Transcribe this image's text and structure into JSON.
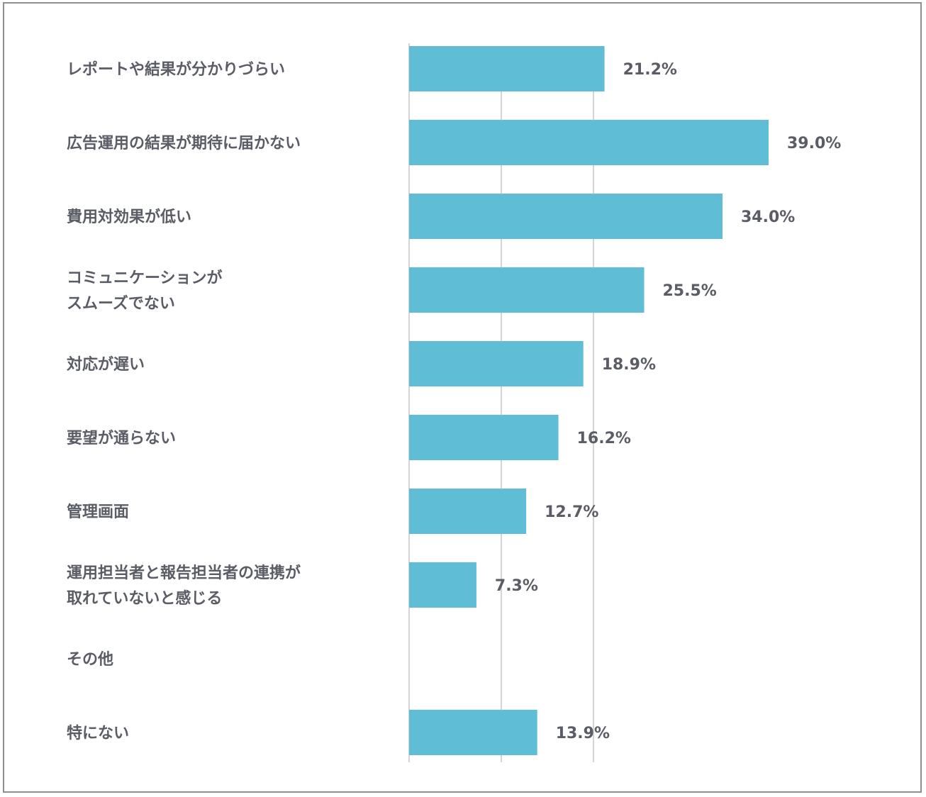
{
  "chart_data": {
    "type": "bar",
    "orientation": "horizontal",
    "title": "",
    "xlabel": "",
    "ylabel": "",
    "xlim": [
      0,
      40
    ],
    "gridlines": [
      0,
      10,
      20
    ],
    "grid": true,
    "legend": "none",
    "bar_color": "#5fbdd5",
    "grid_color": "#d4d4d4",
    "text_color": "#5a5c66",
    "value_suffix": "%",
    "categories": [
      [
        "レポートや結果が分かりづらい"
      ],
      [
        "広告運用の結果が期待に届かない"
      ],
      [
        "費用対効果が低い"
      ],
      [
        "コミュニケーションが",
        "スムーズでない"
      ],
      [
        "対応が遅い"
      ],
      [
        "要望が通らない"
      ],
      [
        "管理画面"
      ],
      [
        "運用担当者と報告担当者の連携が",
        "取れていないと感じる"
      ],
      [
        "その他"
      ],
      [
        "特にない"
      ]
    ],
    "values": [
      21.2,
      39.0,
      34.0,
      25.5,
      18.9,
      16.2,
      12.7,
      7.3,
      null,
      13.9
    ],
    "value_labels": [
      "21.2%",
      "39.0%",
      "34.0%",
      "25.5%",
      "18.9%",
      "16.2%",
      "12.7%",
      "7.3%",
      "",
      "13.9%"
    ]
  }
}
